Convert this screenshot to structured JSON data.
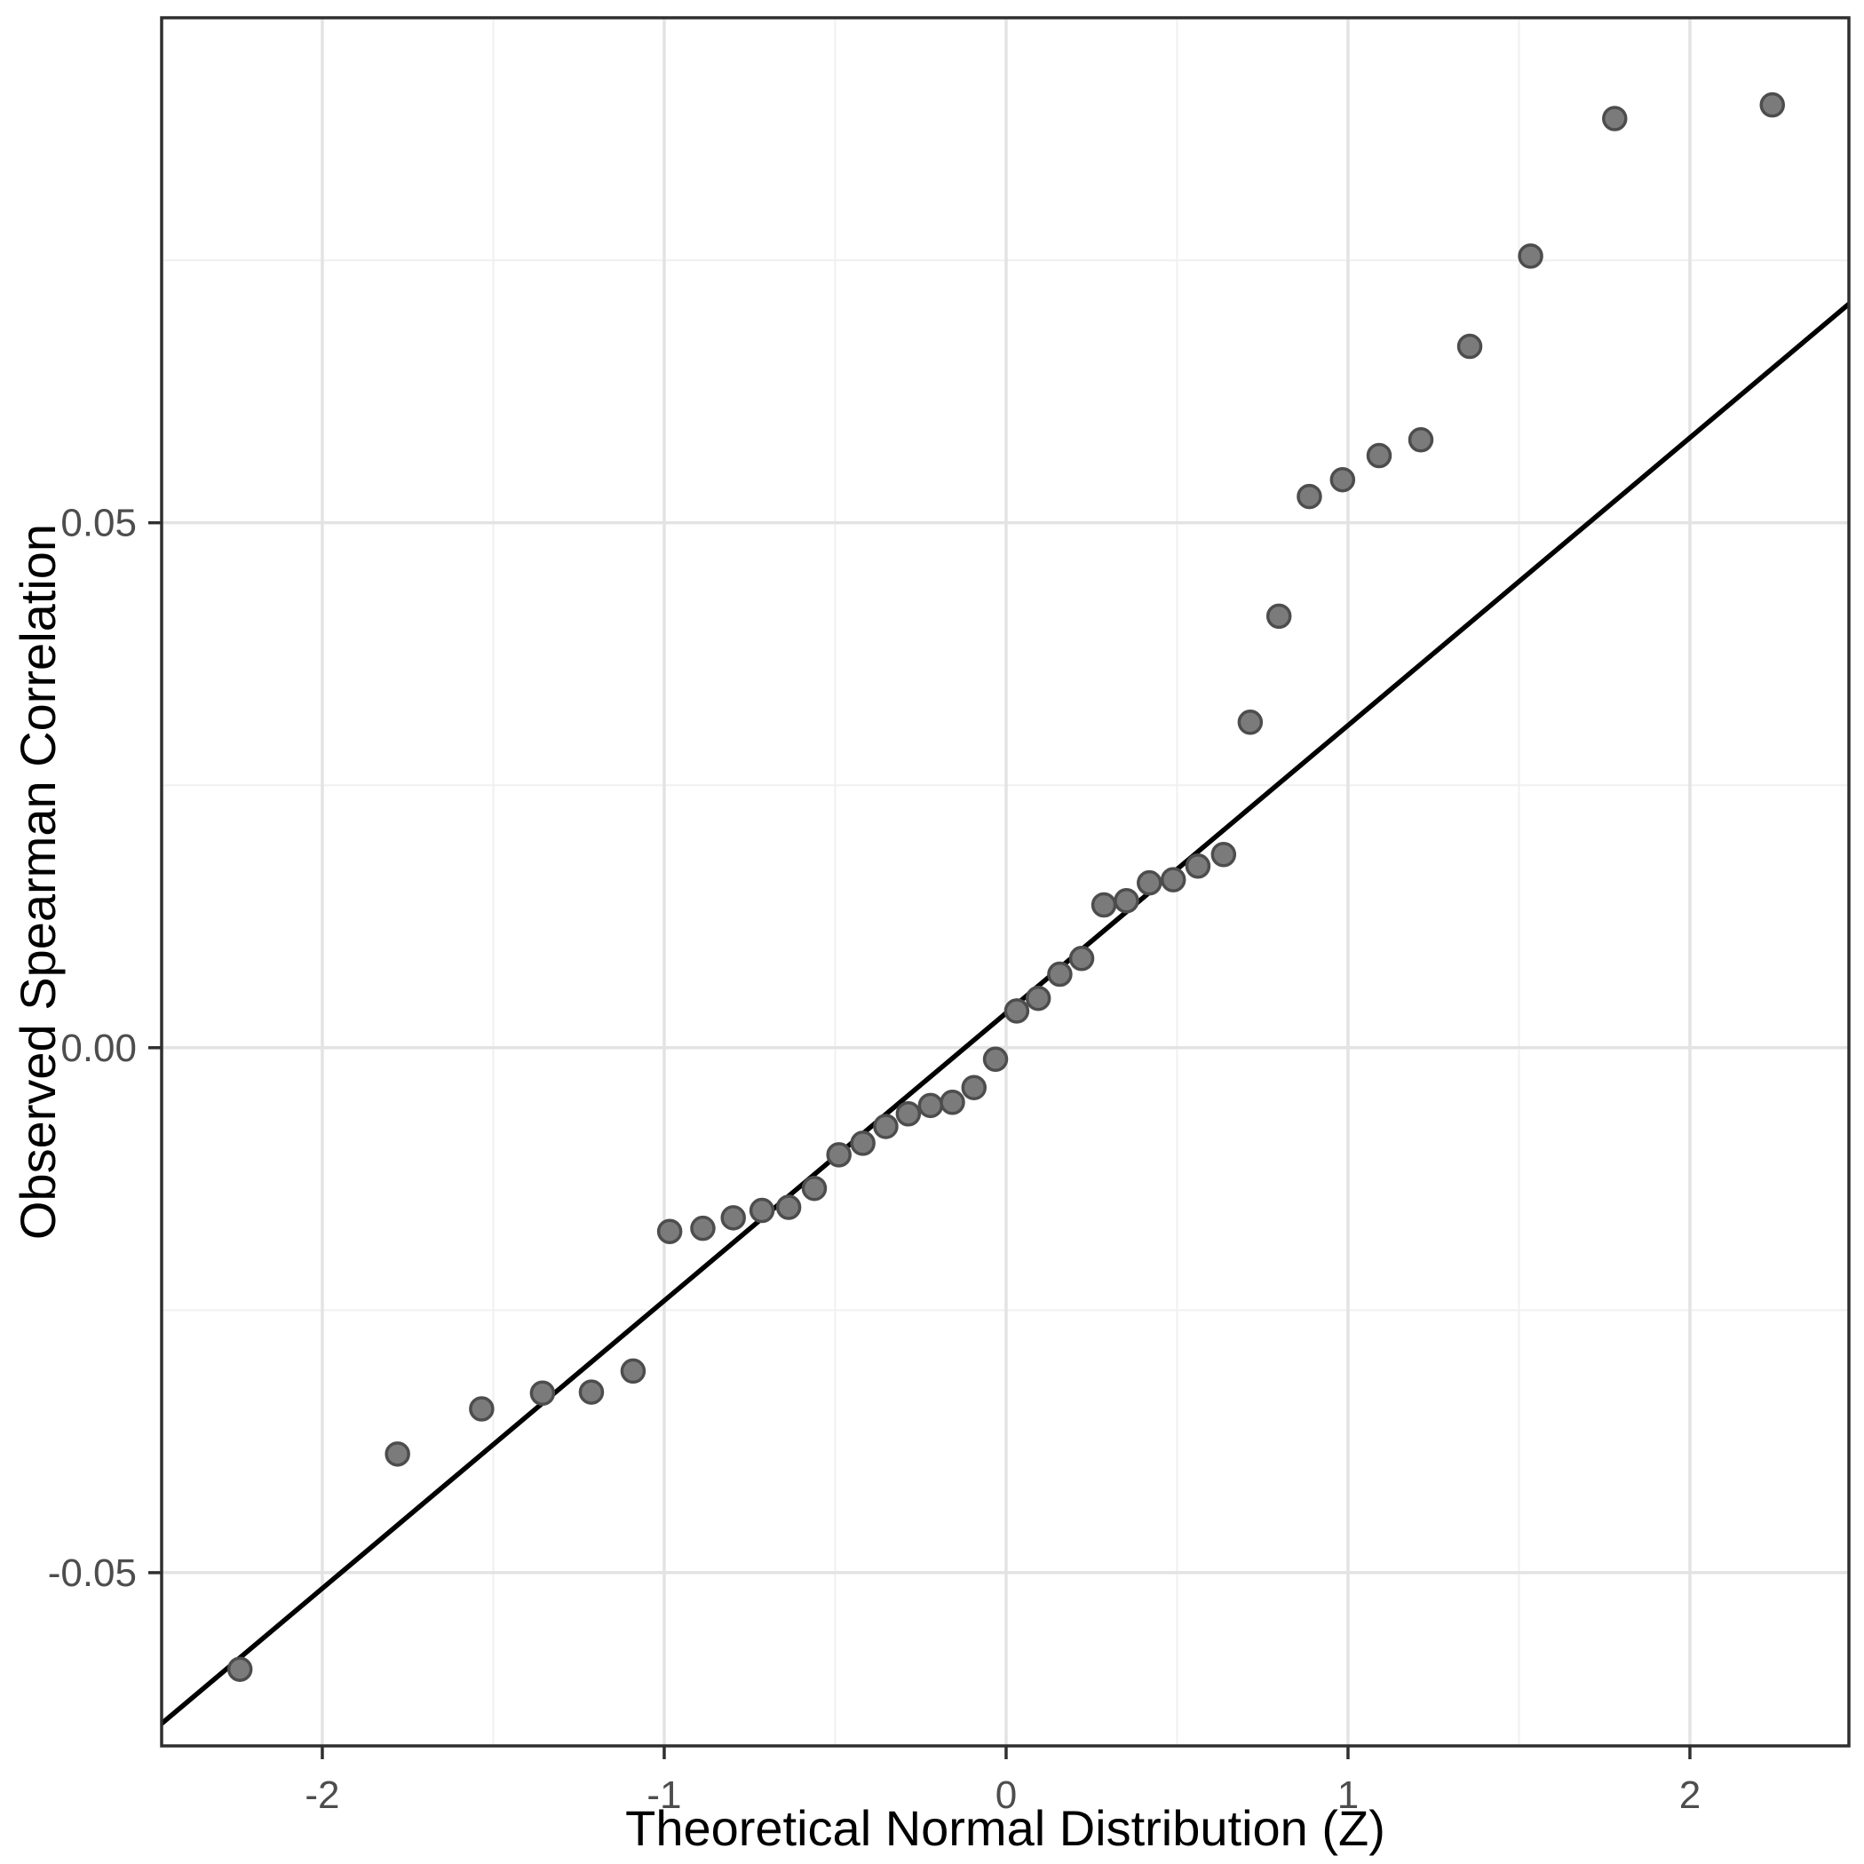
{
  "figure": {
    "kind": "qq-plot",
    "background": "#ffffff",
    "panel_background": "#ffffff"
  },
  "chart_data": {
    "type": "scatter",
    "title": "",
    "xlabel": "Theoretical Normal Distribution (Z)",
    "ylabel": "Observed Spearman Correlation",
    "xlim": [
      -2.47,
      2.465
    ],
    "ylim": [
      -0.0665,
      0.0981
    ],
    "grid": "on",
    "legend": "none",
    "x_ticks": [
      -2,
      -1,
      0,
      1,
      2
    ],
    "x_tick_labels": [
      "-2",
      "-1",
      "0",
      "1",
      "2"
    ],
    "x_minor_ticks": [
      -1.5,
      -0.5,
      0.5,
      1.5
    ],
    "y_ticks": [
      -0.05,
      0.0,
      0.05
    ],
    "y_tick_labels": [
      "-0.05",
      "0.00",
      "0.05"
    ],
    "y_minor_ticks": [
      -0.025,
      0.025,
      0.075
    ],
    "points": [
      [
        -2.241,
        -0.0592
      ],
      [
        -1.78,
        -0.0387
      ],
      [
        -1.534,
        -0.0344
      ],
      [
        -1.356,
        -0.0329
      ],
      [
        -1.213,
        -0.0328
      ],
      [
        -1.091,
        -0.0308
      ],
      [
        -0.984,
        -0.0175
      ],
      [
        -0.887,
        -0.0172
      ],
      [
        -0.798,
        -0.0162
      ],
      [
        -0.714,
        -0.0155
      ],
      [
        -0.636,
        -0.0152
      ],
      [
        -0.561,
        -0.0134
      ],
      [
        -0.489,
        -0.0102
      ],
      [
        -0.419,
        -0.0091
      ],
      [
        -0.352,
        -0.0075
      ],
      [
        -0.286,
        -0.0063
      ],
      [
        -0.221,
        -0.0055
      ],
      [
        -0.157,
        -0.0052
      ],
      [
        -0.094,
        -0.0038
      ],
      [
        -0.031,
        -0.0011
      ],
      [
        0.031,
        0.0035
      ],
      [
        0.094,
        0.0047
      ],
      [
        0.157,
        0.007
      ],
      [
        0.221,
        0.0085
      ],
      [
        0.286,
        0.0136
      ],
      [
        0.352,
        0.014
      ],
      [
        0.419,
        0.0157
      ],
      [
        0.489,
        0.016
      ],
      [
        0.561,
        0.0173
      ],
      [
        0.636,
        0.0184
      ],
      [
        0.714,
        0.031
      ],
      [
        0.798,
        0.0411
      ],
      [
        0.887,
        0.0525
      ],
      [
        0.984,
        0.0541
      ],
      [
        1.091,
        0.0564
      ],
      [
        1.213,
        0.0579
      ],
      [
        1.356,
        0.0668
      ],
      [
        1.534,
        0.0754
      ],
      [
        1.78,
        0.0885
      ],
      [
        2.241,
        0.0898
      ]
    ],
    "reference_line": {
      "type": "linear",
      "intercept": 0.0033,
      "slope": 0.0274,
      "x_start": -2.47,
      "x_end": 2.465,
      "color": "#000000"
    }
  },
  "style": {
    "point_fill": "#7b7b7b",
    "point_stroke": "#4d4d4d",
    "major_grid_color": "#e3e3e3",
    "minor_grid_color": "#f0f0f0",
    "panel_border_color": "#2f2f2f",
    "tick_mark_color": "#2f2f2f",
    "tick_label_color": "#4d4d4d",
    "axis_title_color": "#000000",
    "reference_line_color": "#000000"
  }
}
